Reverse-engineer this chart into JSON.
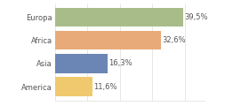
{
  "categories": [
    "America",
    "Asia",
    "Africa",
    "Europa"
  ],
  "values": [
    11.6,
    16.3,
    32.6,
    39.5
  ],
  "bar_colors": [
    "#f0c96e",
    "#6b85b5",
    "#e8aa78",
    "#a8bc8a"
  ],
  "labels": [
    "11,6%",
    "16,3%",
    "32,6%",
    "39,5%"
  ],
  "xlim": [
    0,
    46
  ],
  "background_color": "#ffffff",
  "label_fontsize": 6,
  "category_fontsize": 6
}
